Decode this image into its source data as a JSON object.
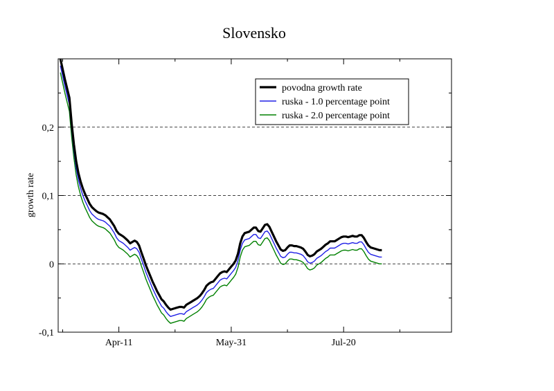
{
  "chart_data": {
    "type": "line",
    "title": "Slovensko",
    "xlabel": "",
    "ylabel": "growth rate",
    "x_ticks": [
      {
        "label": "Apr-11",
        "day": 27
      },
      {
        "label": "May-31",
        "day": 77
      },
      {
        "label": "Jul-20",
        "day": 127
      }
    ],
    "y_ticks": [
      {
        "label": "-0,1",
        "value": -0.1
      },
      {
        "label": "0",
        "value": 0
      },
      {
        "label": "0,1",
        "value": 0.1
      },
      {
        "label": "0,2",
        "value": 0.2
      }
    ],
    "ylim": [
      -0.1,
      0.3
    ],
    "xlim": [
      0,
      175
    ],
    "dashed_gridlines_y": [
      0,
      0.1,
      0.2
    ],
    "legend_position": "top-right",
    "series": [
      {
        "name": "povodna growth rate",
        "color": "#000000",
        "points": [
          [
            1,
            0.3
          ],
          [
            3,
            0.27
          ],
          [
            5,
            0.243
          ],
          [
            6,
            0.205
          ],
          [
            7,
            0.175
          ],
          [
            8,
            0.15
          ],
          [
            9,
            0.133
          ],
          [
            10,
            0.12
          ],
          [
            11,
            0.11
          ],
          [
            12,
            0.102
          ],
          [
            13,
            0.095
          ],
          [
            14,
            0.088
          ],
          [
            15,
            0.083
          ],
          [
            16,
            0.08
          ],
          [
            17,
            0.077
          ],
          [
            18,
            0.075
          ],
          [
            19,
            0.074
          ],
          [
            20,
            0.073
          ],
          [
            21,
            0.071
          ],
          [
            22,
            0.068
          ],
          [
            23,
            0.065
          ],
          [
            24,
            0.06
          ],
          [
            25,
            0.055
          ],
          [
            26,
            0.048
          ],
          [
            27,
            0.044
          ],
          [
            28,
            0.042
          ],
          [
            29,
            0.04
          ],
          [
            30,
            0.037
          ],
          [
            31,
            0.034
          ],
          [
            32,
            0.03
          ],
          [
            33,
            0.032
          ],
          [
            34,
            0.034
          ],
          [
            35,
            0.032
          ],
          [
            36,
            0.027
          ],
          [
            37,
            0.017
          ],
          [
            38,
            0.008
          ],
          [
            39,
            -0.002
          ],
          [
            40,
            -0.01
          ],
          [
            41,
            -0.018
          ],
          [
            42,
            -0.026
          ],
          [
            43,
            -0.033
          ],
          [
            44,
            -0.04
          ],
          [
            45,
            -0.046
          ],
          [
            46,
            -0.052
          ],
          [
            47,
            -0.055
          ],
          [
            48,
            -0.06
          ],
          [
            49,
            -0.064
          ],
          [
            50,
            -0.067
          ],
          [
            51,
            -0.066
          ],
          [
            52,
            -0.065
          ],
          [
            53,
            -0.064
          ],
          [
            54,
            -0.063
          ],
          [
            55,
            -0.063
          ],
          [
            56,
            -0.064
          ],
          [
            57,
            -0.06
          ],
          [
            58,
            -0.058
          ],
          [
            59,
            -0.056
          ],
          [
            60,
            -0.054
          ],
          [
            61,
            -0.052
          ],
          [
            62,
            -0.05
          ],
          [
            63,
            -0.047
          ],
          [
            64,
            -0.043
          ],
          [
            65,
            -0.038
          ],
          [
            66,
            -0.032
          ],
          [
            67,
            -0.029
          ],
          [
            68,
            -0.027
          ],
          [
            69,
            -0.026
          ],
          [
            70,
            -0.022
          ],
          [
            71,
            -0.018
          ],
          [
            72,
            -0.014
          ],
          [
            73,
            -0.012
          ],
          [
            74,
            -0.011
          ],
          [
            75,
            -0.012
          ],
          [
            76,
            -0.008
          ],
          [
            77,
            -0.004
          ],
          [
            78,
            0.0
          ],
          [
            79,
            0.005
          ],
          [
            80,
            0.015
          ],
          [
            81,
            0.03
          ],
          [
            82,
            0.04
          ],
          [
            83,
            0.045
          ],
          [
            84,
            0.046
          ],
          [
            85,
            0.047
          ],
          [
            86,
            0.05
          ],
          [
            87,
            0.053
          ],
          [
            88,
            0.053
          ],
          [
            89,
            0.048
          ],
          [
            90,
            0.047
          ],
          [
            91,
            0.052
          ],
          [
            92,
            0.057
          ],
          [
            93,
            0.058
          ],
          [
            94,
            0.054
          ],
          [
            95,
            0.047
          ],
          [
            96,
            0.04
          ],
          [
            97,
            0.033
          ],
          [
            98,
            0.027
          ],
          [
            99,
            0.021
          ],
          [
            100,
            0.019
          ],
          [
            101,
            0.02
          ],
          [
            102,
            0.024
          ],
          [
            103,
            0.027
          ],
          [
            104,
            0.027
          ],
          [
            105,
            0.026
          ],
          [
            106,
            0.026
          ],
          [
            107,
            0.025
          ],
          [
            108,
            0.024
          ],
          [
            109,
            0.022
          ],
          [
            110,
            0.018
          ],
          [
            111,
            0.013
          ],
          [
            112,
            0.011
          ],
          [
            113,
            0.012
          ],
          [
            114,
            0.014
          ],
          [
            115,
            0.018
          ],
          [
            116,
            0.02
          ],
          [
            117,
            0.022
          ],
          [
            118,
            0.025
          ],
          [
            119,
            0.028
          ],
          [
            120,
            0.03
          ],
          [
            121,
            0.033
          ],
          [
            122,
            0.033
          ],
          [
            123,
            0.033
          ],
          [
            124,
            0.035
          ],
          [
            125,
            0.037
          ],
          [
            126,
            0.039
          ],
          [
            127,
            0.04
          ],
          [
            128,
            0.04
          ],
          [
            129,
            0.039
          ],
          [
            130,
            0.04
          ],
          [
            131,
            0.041
          ],
          [
            132,
            0.04
          ],
          [
            133,
            0.04
          ],
          [
            134,
            0.042
          ],
          [
            135,
            0.042
          ],
          [
            136,
            0.038
          ],
          [
            137,
            0.032
          ],
          [
            138,
            0.027
          ],
          [
            139,
            0.024
          ],
          [
            140,
            0.023
          ],
          [
            141,
            0.022
          ],
          [
            142,
            0.021
          ],
          [
            143,
            0.02
          ],
          [
            144,
            0.02
          ]
        ]
      },
      {
        "name": "ruska - 1.0 percentage point",
        "color": "#1f1fe6",
        "offset": -0.01
      },
      {
        "name": "ruska - 2.0 percentage point",
        "color": "#008000",
        "offset": -0.02
      }
    ]
  }
}
